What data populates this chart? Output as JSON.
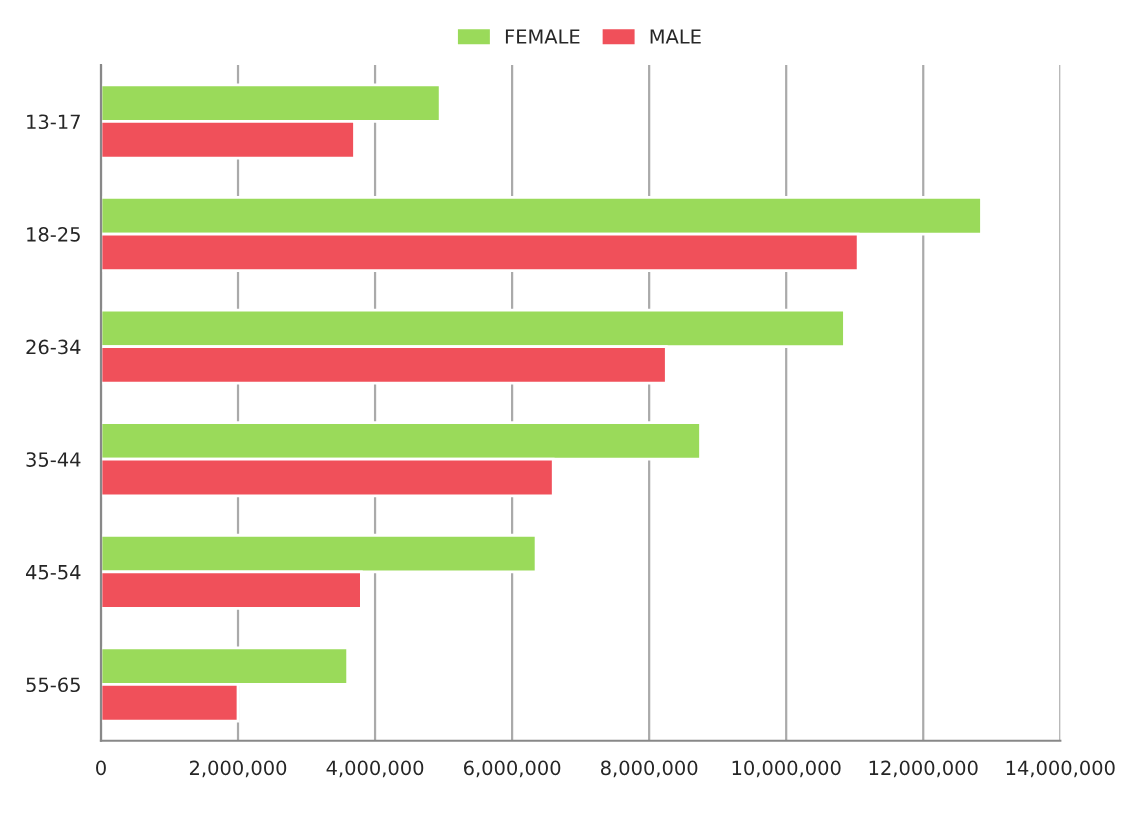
{
  "chart_data": {
    "type": "bar",
    "orientation": "horizontal",
    "categories": [
      "13-17",
      "18-25",
      "26-34",
      "35-44",
      "45-54",
      "55-65"
    ],
    "series": [
      {
        "name": "FEMALE",
        "color": "#9ada5a",
        "values": [
          4950000,
          12850000,
          10850000,
          8750000,
          6350000,
          3600000
        ]
      },
      {
        "name": "MALE",
        "color": "#f0505a",
        "values": [
          3700000,
          11050000,
          8250000,
          6600000,
          3800000,
          2000000
        ]
      }
    ],
    "xlim": [
      0,
      14000000
    ],
    "xticks": [
      {
        "value": 0,
        "label": "0"
      },
      {
        "value": 2000000,
        "label": "2,000,000"
      },
      {
        "value": 4000000,
        "label": "4,000,000"
      },
      {
        "value": 6000000,
        "label": "6,000,000"
      },
      {
        "value": 8000000,
        "label": "8,000,000"
      },
      {
        "value": 10000000,
        "label": "10,000,000"
      },
      {
        "value": 12000000,
        "label": "12,000,000"
      },
      {
        "value": 14000000,
        "label": "14,000,000"
      }
    ],
    "grid": "x",
    "legend": "top"
  }
}
